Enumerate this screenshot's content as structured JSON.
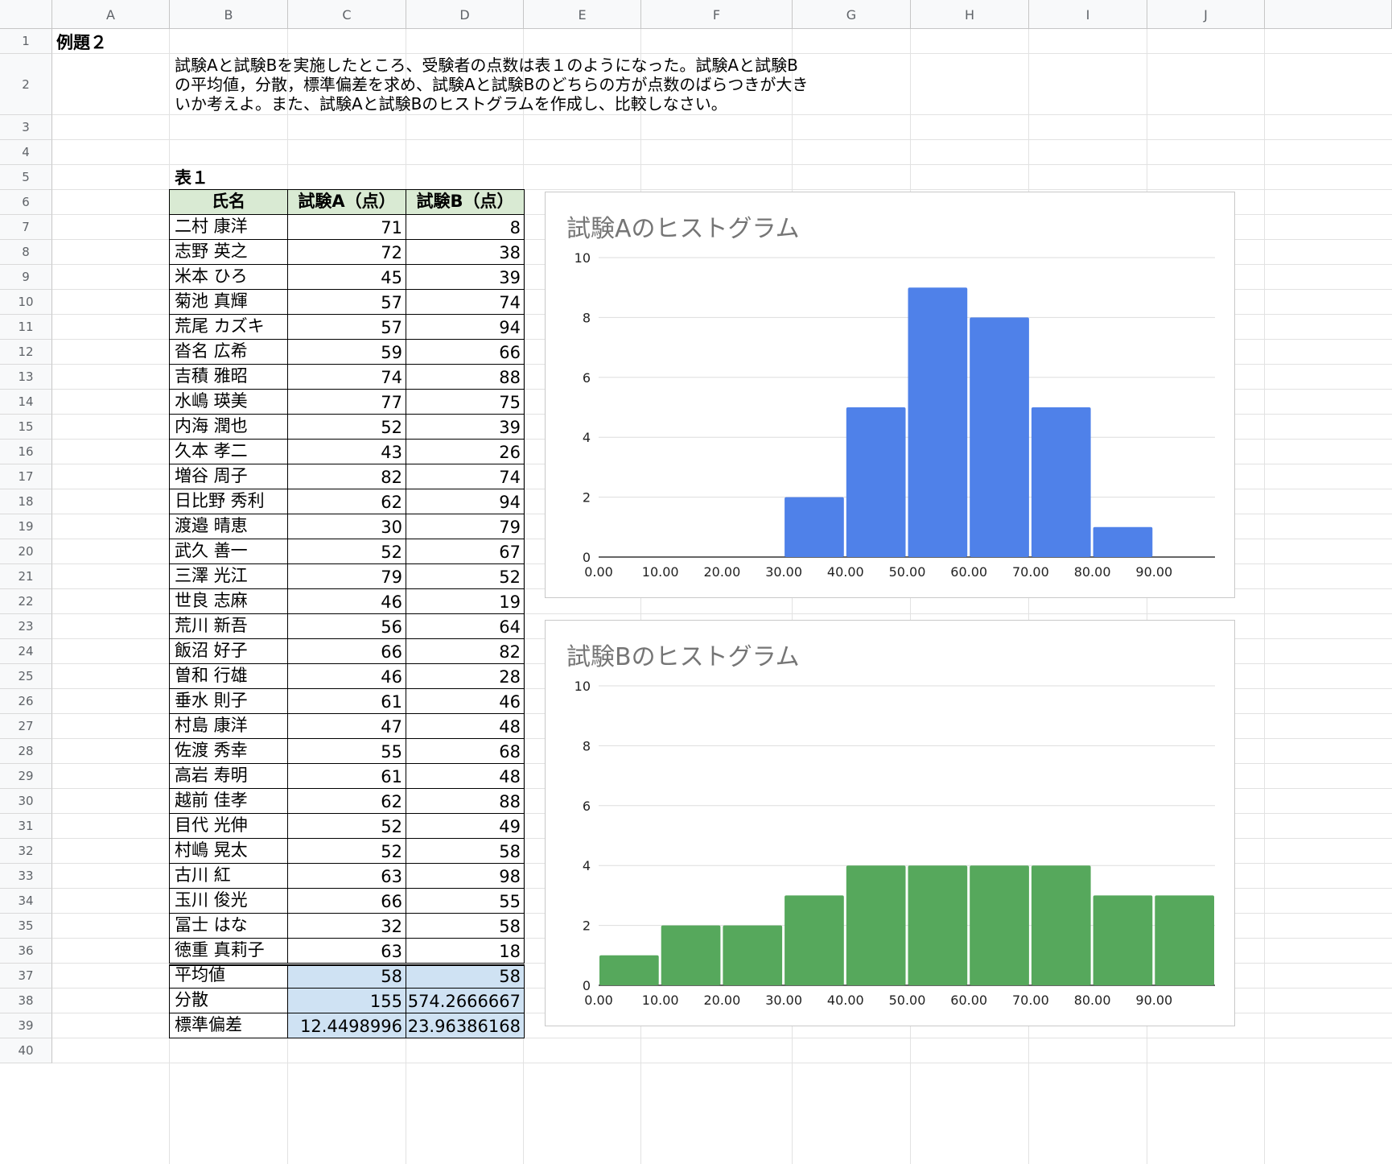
{
  "columns": [
    "A",
    "B",
    "C",
    "D",
    "E",
    "F",
    "G",
    "H",
    "I",
    "J"
  ],
  "rows": [
    "1",
    "2",
    "3",
    "4",
    "5",
    "6",
    "7",
    "8",
    "9",
    "10",
    "11",
    "12",
    "13",
    "14",
    "15",
    "16",
    "17",
    "18",
    "19",
    "20",
    "21",
    "22",
    "23",
    "24",
    "25",
    "26",
    "27",
    "28",
    "29",
    "30",
    "31",
    "32",
    "33",
    "34",
    "35",
    "36",
    "37",
    "38",
    "39",
    "40"
  ],
  "title": "例題２",
  "problem_lines": [
    "試験Aと試験Bを実施したところ、受験者の点数は表１のようになった。試験Aと試験B",
    "の平均値，分散，標準偏差を求め、試験Aと試験Bのどちらの方が点数のばらつきが大き",
    "いか考えよ。また、試験Aと試験Bのヒストグラムを作成し、比較しなさい。"
  ],
  "table_label": "表１",
  "table": {
    "headers": [
      "氏名",
      "試験A（点）",
      "試験B（点）"
    ],
    "rows": [
      [
        "二村 康洋",
        "71",
        "8"
      ],
      [
        "志野 英之",
        "72",
        "38"
      ],
      [
        "米本 ひろ",
        "45",
        "39"
      ],
      [
        "菊池 真輝",
        "57",
        "74"
      ],
      [
        "荒尾 カズキ",
        "57",
        "94"
      ],
      [
        "沓名 広希",
        "59",
        "66"
      ],
      [
        "吉積 雅昭",
        "74",
        "88"
      ],
      [
        "水嶋 瑛美",
        "77",
        "75"
      ],
      [
        "内海 潤也",
        "52",
        "39"
      ],
      [
        "久本 孝二",
        "43",
        "26"
      ],
      [
        "増谷 周子",
        "82",
        "74"
      ],
      [
        "日比野 秀利",
        "62",
        "94"
      ],
      [
        "渡邉 晴恵",
        "30",
        "79"
      ],
      [
        "武久 善一",
        "52",
        "67"
      ],
      [
        "三澤 光江",
        "79",
        "52"
      ],
      [
        "世良 志麻",
        "46",
        "19"
      ],
      [
        "荒川 新吾",
        "56",
        "64"
      ],
      [
        "飯沼 好子",
        "66",
        "82"
      ],
      [
        "曽和 行雄",
        "46",
        "28"
      ],
      [
        "垂水 則子",
        "61",
        "46"
      ],
      [
        "村島 康洋",
        "47",
        "48"
      ],
      [
        "佐渡 秀幸",
        "55",
        "68"
      ],
      [
        "高岩 寿明",
        "61",
        "48"
      ],
      [
        "越前 佳孝",
        "62",
        "88"
      ],
      [
        "目代 光伸",
        "52",
        "49"
      ],
      [
        "村嶋 晃太",
        "52",
        "58"
      ],
      [
        "古川 紅",
        "63",
        "98"
      ],
      [
        "玉川 俊光",
        "66",
        "55"
      ],
      [
        "冨士 はな",
        "32",
        "58"
      ],
      [
        "徳重 真莉子",
        "63",
        "18"
      ]
    ],
    "stats": [
      [
        "平均値",
        "58",
        "58"
      ],
      [
        "分散",
        "155",
        "574.2666667"
      ],
      [
        "標準偏差",
        "12.4498996",
        "23.96386168"
      ]
    ]
  },
  "chart_data": [
    {
      "type": "bar",
      "title": "試験Aのヒストグラム",
      "categories": [
        "0.00",
        "10.00",
        "20.00",
        "30.00",
        "40.00",
        "50.00",
        "60.00",
        "70.00",
        "80.00",
        "90.00"
      ],
      "values": [
        0,
        0,
        0,
        2,
        5,
        9,
        8,
        5,
        1,
        0
      ],
      "yticks": [
        "0",
        "2",
        "4",
        "6",
        "8",
        "10"
      ],
      "ylim": [
        0,
        10
      ],
      "color": "#4f81e9",
      "grid": true
    },
    {
      "type": "bar",
      "title": "試験Bのヒストグラム",
      "categories": [
        "0.00",
        "10.00",
        "20.00",
        "30.00",
        "40.00",
        "50.00",
        "60.00",
        "70.00",
        "80.00",
        "90.00"
      ],
      "values": [
        1,
        2,
        2,
        3,
        4,
        4,
        4,
        4,
        3,
        3
      ],
      "yticks": [
        "0",
        "2",
        "4",
        "6",
        "8",
        "10"
      ],
      "ylim": [
        0,
        10
      ],
      "color": "#56a85c",
      "grid": true
    }
  ]
}
